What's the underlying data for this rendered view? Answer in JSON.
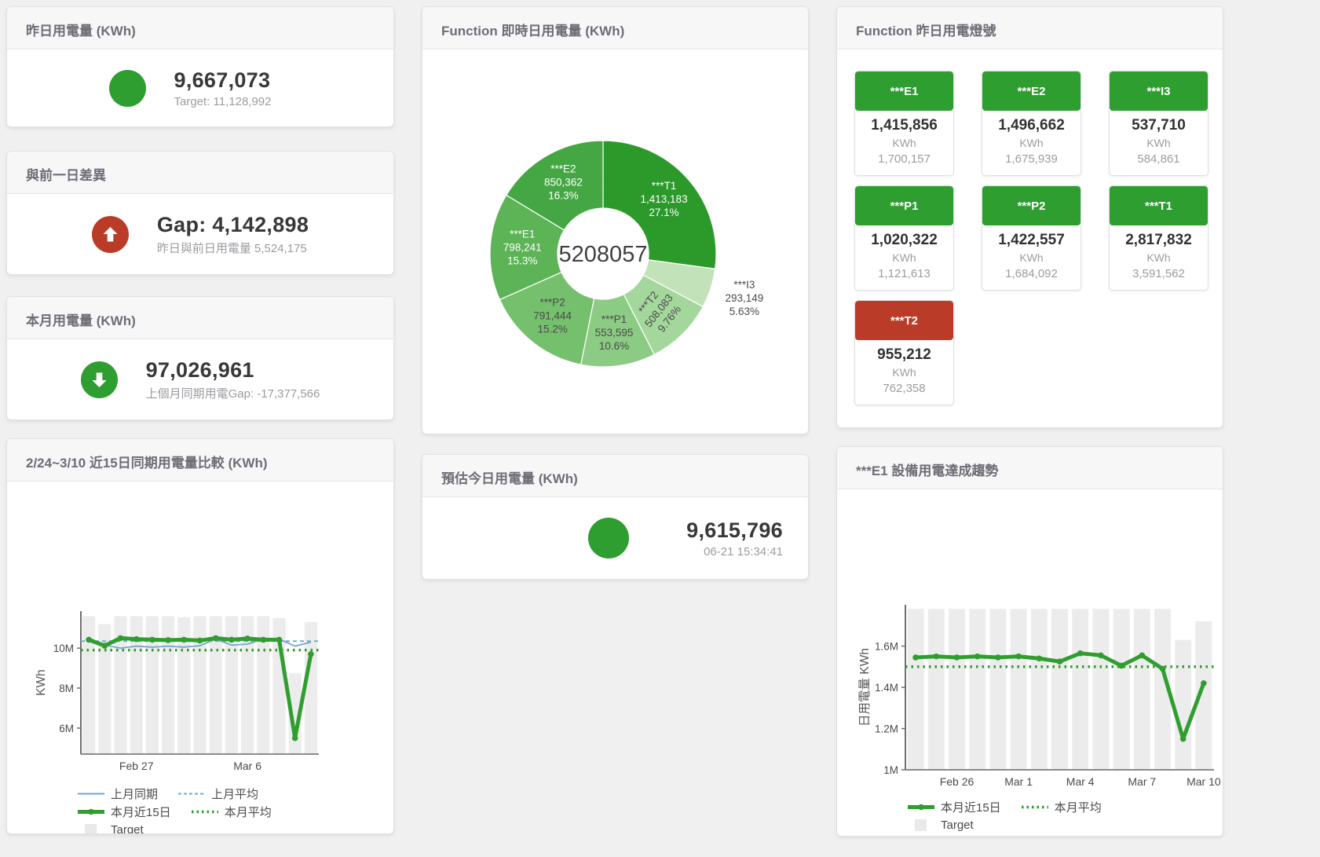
{
  "colors": {
    "green": "#2e9e31",
    "red": "#ba3c28",
    "bar": "#ececec",
    "legend_box": "#e9e9e9",
    "blue": "#72a5d3",
    "line_green": "#2f9e2f"
  },
  "cards": {
    "yesterday": {
      "title": "昨日用電量 (KWh)",
      "value": "9,667,073",
      "subtext": "Target: 11,128,992",
      "status": "green",
      "icon": "none"
    },
    "diff": {
      "title": "與前一日差異",
      "value": "Gap: 4,142,898",
      "subtext": "昨日與前日用電量 5,524,175",
      "status": "red",
      "icon": "up"
    },
    "month": {
      "title": "本月用電量 (KWh)",
      "value": "97,026,961",
      "subtext": "上個月同期用電Gap: -17,377,566",
      "status": "green",
      "icon": "down"
    },
    "realtime": {
      "title": "Function 即時日用電量 (KWh)"
    },
    "lights": {
      "title": "Function 昨日用電燈號",
      "unit": "KWh",
      "tiles": [
        {
          "name": "***E1",
          "value": "1,415,856",
          "target": "1,700,157",
          "status": "green"
        },
        {
          "name": "***E2",
          "value": "1,496,662",
          "target": "1,675,939",
          "status": "green"
        },
        {
          "name": "***I3",
          "value": "537,710",
          "target": "584,861",
          "status": "green"
        },
        {
          "name": "***P1",
          "value": "1,020,322",
          "target": "1,121,613",
          "status": "green"
        },
        {
          "name": "***P2",
          "value": "1,422,557",
          "target": "1,684,092",
          "status": "green"
        },
        {
          "name": "***T1",
          "value": "2,817,832",
          "target": "3,591,562",
          "status": "green"
        },
        {
          "name": "***T2",
          "value": "955,212",
          "target": "762,358",
          "status": "red"
        }
      ]
    },
    "compare": {
      "title": "2/24~3/10 近15日同期用電量比較 (KWh)"
    },
    "estimate": {
      "title": "預估今日用電量 (KWh)",
      "value": "9,615,796",
      "subtext": "06-21 15:34:41",
      "status": "green",
      "icon": "none"
    },
    "trend": {
      "title": "***E1 設備用電達成趨勢"
    }
  },
  "chart_data": [
    {
      "type": "pie",
      "title": "Function 即時日用電量 (KWh)",
      "center_label": "5208057",
      "legend_position": "none",
      "slices": [
        {
          "label": "***T1",
          "value": 1413183,
          "value_text": "1,413,183",
          "pct": "27.1%",
          "color": "#2b9a2b",
          "text_color": "#ffffff"
        },
        {
          "label": "***I3",
          "value": 293149,
          "value_text": "293,149",
          "pct": "5.63%",
          "color": "#c2e3ba",
          "text_color": "#4a4a4a",
          "label_outside": true
        },
        {
          "label": "***T2",
          "value": 508083,
          "value_text": "508,083",
          "pct": "9.76%",
          "color": "#a3d79b",
          "text_color": "#4a4a4a",
          "rotate": -52
        },
        {
          "label": "***P1",
          "value": 553595,
          "value_text": "553,595",
          "pct": "10.6%",
          "color": "#8ccb84",
          "text_color": "#4a4a4a"
        },
        {
          "label": "***P2",
          "value": 791444,
          "value_text": "791,444",
          "pct": "15.2%",
          "color": "#75c06d",
          "text_color": "#4a4a4a"
        },
        {
          "label": "***E1",
          "value": 798241,
          "value_text": "798,241",
          "pct": "15.3%",
          "color": "#5db456",
          "text_color": "#ffffff"
        },
        {
          "label": "***E2",
          "value": 850362,
          "value_text": "850,362",
          "pct": "16.3%",
          "color": "#45a743",
          "text_color": "#ffffff"
        }
      ]
    },
    {
      "type": "line",
      "title": "2/24~3/10 近15日同期用電量比較 (KWh)",
      "ylabel": "KWh",
      "grid": false,
      "ylim": [
        4.7,
        11.85
      ],
      "yticks": [
        {
          "v": 6,
          "label": "6M"
        },
        {
          "v": 8,
          "label": "8M"
        },
        {
          "v": 10,
          "label": "10M"
        }
      ],
      "xticks": [
        {
          "i": 3,
          "label": "Feb 27"
        },
        {
          "i": 10,
          "label": "Mar 6"
        }
      ],
      "target": [
        11.6,
        11.2,
        11.6,
        11.6,
        11.6,
        11.6,
        11.55,
        11.6,
        11.6,
        11.6,
        11.6,
        11.6,
        11.5,
        8.75,
        11.3
      ],
      "series": [
        {
          "name": "上月同期",
          "style": "thin",
          "color": "#72a5d3",
          "values": [
            10.5,
            10.15,
            10.0,
            10.1,
            10.05,
            10.1,
            10.05,
            10.12,
            10.45,
            10.15,
            10.2,
            10.45,
            10.45,
            10.1,
            10.3
          ]
        },
        {
          "name": "上月平均",
          "style": "dashed",
          "color": "#72a5d3",
          "avg": 10.35
        },
        {
          "name": "本月近15日",
          "style": "thick",
          "color": "#2f9e2f",
          "values": [
            10.42,
            10.12,
            10.5,
            10.45,
            10.42,
            10.4,
            10.42,
            10.38,
            10.5,
            10.42,
            10.48,
            10.42,
            10.42,
            5.5,
            9.7
          ]
        },
        {
          "name": "本月平均",
          "style": "dotted",
          "color": "#2f9e2f",
          "avg": 9.9
        }
      ],
      "legend": [
        [
          {
            "style": "thin",
            "color": "#72a5d3",
            "label": "上月同期"
          },
          {
            "style": "dashed",
            "color": "#72a5d3",
            "label": "上月平均"
          }
        ],
        [
          {
            "style": "thick",
            "color": "#2f9e2f",
            "label": "本月近15日"
          },
          {
            "style": "dotted",
            "color": "#2f9e2f",
            "label": "本月平均"
          }
        ],
        [
          {
            "style": "box",
            "color": "#e9e9e9",
            "label": "Target"
          }
        ]
      ]
    },
    {
      "type": "line",
      "title": "***E1 設備用電達成趨勢",
      "ylabel": "日用電量 KWh",
      "grid": false,
      "ylim": [
        1.0,
        1.8
      ],
      "yticks": [
        {
          "v": 1,
          "label": "1M"
        },
        {
          "v": 1.2,
          "label": "1.2M"
        },
        {
          "v": 1.4,
          "label": "1.4M"
        },
        {
          "v": 1.6,
          "label": "1.6M"
        }
      ],
      "xticks": [
        {
          "i": 2,
          "label": "Feb 26"
        },
        {
          "i": 5,
          "label": "Mar 1"
        },
        {
          "i": 8,
          "label": "Mar 4"
        },
        {
          "i": 11,
          "label": "Mar 7"
        },
        {
          "i": 14,
          "label": "Mar 10"
        }
      ],
      "target": [
        1.78,
        1.78,
        1.78,
        1.78,
        1.78,
        1.78,
        1.78,
        1.78,
        1.78,
        1.78,
        1.78,
        1.78,
        1.78,
        1.63,
        1.72
      ],
      "series": [
        {
          "name": "本月近15日",
          "style": "thick",
          "color": "#2f9e2f",
          "values": [
            1.545,
            1.55,
            1.545,
            1.55,
            1.545,
            1.55,
            1.54,
            1.525,
            1.565,
            1.555,
            1.505,
            1.555,
            1.49,
            1.15,
            1.42
          ]
        },
        {
          "name": "本月平均",
          "style": "dotted",
          "color": "#2f9e2f",
          "avg": 1.5
        }
      ],
      "legend": [
        [
          {
            "style": "thick",
            "color": "#2f9e2f",
            "label": "本月近15日"
          },
          {
            "style": "dotted",
            "color": "#2f9e2f",
            "label": "本月平均"
          }
        ],
        [
          {
            "style": "box",
            "color": "#e9e9e9",
            "label": "Target"
          }
        ]
      ]
    }
  ]
}
